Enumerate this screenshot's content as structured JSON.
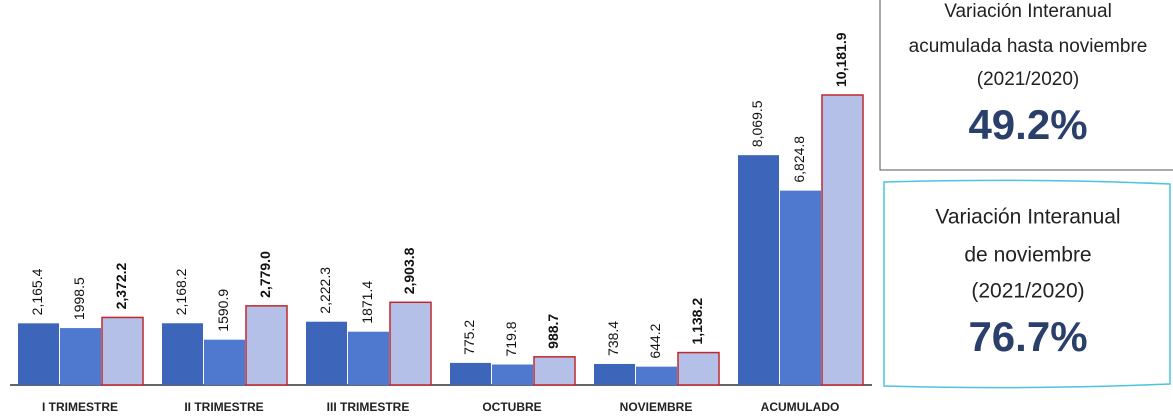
{
  "chart_data": {
    "type": "bar",
    "categories": [
      "I TRIMESTRE",
      "II TRIMESTRE",
      "III TRIMESTRE",
      "OCTUBRE",
      "NOVIEMBRE",
      "ACUMULADO"
    ],
    "series": [
      {
        "color": "#3d66bb",
        "values": [
          2165.4,
          2168.2,
          2222.3,
          775.2,
          738.4,
          8069.5
        ],
        "value_labels": [
          "2,165.4",
          "2,168.2",
          "2,222.3",
          "775.2",
          "738.4",
          "8,069.5"
        ]
      },
      {
        "color": "#4f78cf",
        "values": [
          1998.5,
          1590.9,
          1871.4,
          719.8,
          644.2,
          6824.8
        ],
        "value_labels": [
          "1998.5",
          "1590.9",
          "1871.4",
          "719.8",
          "644.2",
          "6,824.8"
        ]
      },
      {
        "color": "#b4c0e8",
        "values": [
          2372.2,
          2779.0,
          2903.8,
          988.7,
          1138.2,
          10181.9
        ],
        "value_labels": [
          "2,372.2",
          "2,779.0",
          "2,903.8",
          "988.7",
          "1,138.2",
          "10,181.9"
        ]
      }
    ],
    "annotations": [
      {
        "lines": [
          "Variación Interanual",
          "acumulada hasta noviembre",
          "(2021/2020)"
        ],
        "value": "49.2%"
      },
      {
        "lines": [
          "Variación Interanual",
          "de noviembre",
          "(2021/2020)"
        ],
        "value": "76.7%"
      }
    ]
  }
}
